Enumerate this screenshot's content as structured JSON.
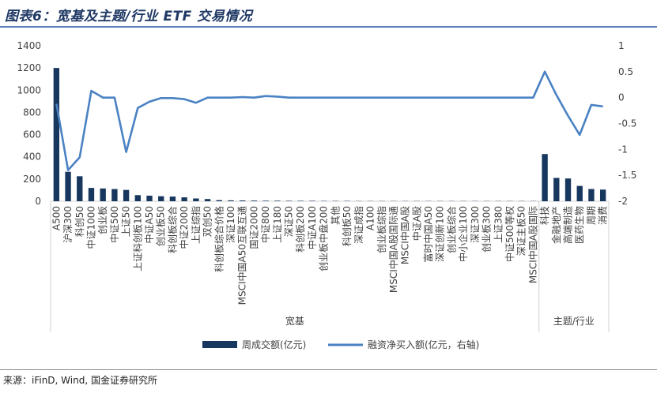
{
  "title": "图表6：宽基及主题/行业 ETF 交易情况",
  "source": "来源：iFinD, Wind, 国金证券研究所",
  "colors": {
    "bar": "#17375e",
    "line": "#4a82c3",
    "axis": "#bfbfbf",
    "text": "#404040"
  },
  "chart_data": {
    "type": "bar",
    "categories": [
      "A500",
      "沪深300",
      "科创50",
      "中证1000",
      "创业板",
      "中证500",
      "上证50",
      "上证科创板100",
      "中证A50",
      "创业板50",
      "科创板综合",
      "中证2000",
      "上证综指",
      "双创50",
      "科创板综合价格",
      "深证100",
      "MSCI中国A50互联互通",
      "国证2000",
      "中证800",
      "上证180",
      "深证50",
      "科创板200",
      "中证A100",
      "创业板中盘200",
      "其他",
      "科创板50",
      "深证成指",
      "A100",
      "创业板综指",
      "MSCI中国A股国际通",
      "MSCI中国A股",
      "中证A股",
      "富时中国A50",
      "深证创新100",
      "创业板综合",
      "中小企业100",
      "深证300",
      "创业板300",
      "上证380",
      "中证500等权",
      "深证主板50",
      "MSCI中国A股国际",
      "科技",
      "金融地产",
      "高端制造",
      "医药生物",
      "周期",
      "消费"
    ],
    "series": [
      {
        "name": "周成交额(亿元)",
        "type": "bar",
        "axis": "left",
        "values": [
          1200,
          265,
          225,
          120,
          115,
          110,
          102,
          55,
          50,
          45,
          42,
          35,
          25,
          20,
          10,
          8,
          7,
          6,
          5,
          5,
          4,
          4,
          4,
          3,
          3,
          3,
          2,
          2,
          2,
          2,
          2,
          2,
          2,
          2,
          2,
          2,
          2,
          2,
          2,
          2,
          2,
          2,
          425,
          210,
          205,
          138,
          110,
          105
        ]
      },
      {
        "name": "融资净买入额(亿元，右轴)",
        "type": "line",
        "axis": "right",
        "values": [
          -0.12,
          -1.4,
          -1.15,
          0.13,
          0,
          0,
          -1.05,
          -0.2,
          -0.08,
          -0.01,
          -0.01,
          -0.03,
          -0.1,
          0,
          0,
          0,
          0.01,
          0,
          0.03,
          0.02,
          0,
          0,
          0,
          0,
          0,
          0,
          0,
          0,
          0,
          0,
          0,
          0,
          0,
          0,
          0,
          0,
          0,
          0,
          0,
          0,
          0,
          0,
          0.5,
          0.05,
          -0.35,
          -0.72,
          -0.14,
          -0.17
        ]
      }
    ],
    "y_left": {
      "min": 0,
      "max": 1400,
      "ticks": [
        "0",
        "200",
        "400",
        "600",
        "800",
        "1000",
        "1200",
        "1400"
      ]
    },
    "y_right": {
      "min": -2,
      "max": 1,
      "ticks": [
        "-2",
        "-1.5",
        "-1",
        "-0.5",
        "0",
        "0.5",
        "1"
      ]
    },
    "groups": [
      {
        "label": "宽基",
        "from": 0,
        "to": 41
      },
      {
        "label": "主题/行业",
        "from": 42,
        "to": 47
      }
    ],
    "legend": {
      "position": "bottom"
    }
  }
}
